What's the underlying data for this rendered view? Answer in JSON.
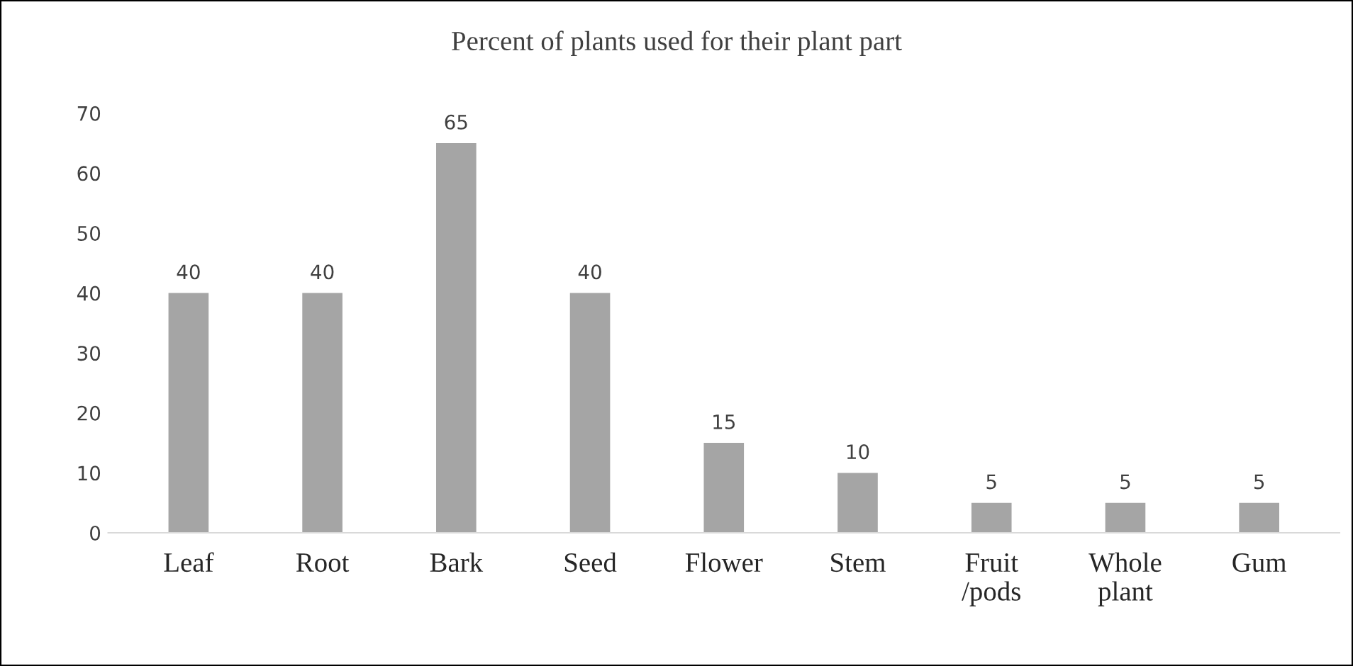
{
  "chart_data": {
    "type": "bar",
    "title": "Percent of plants used for their plant part",
    "categories": [
      "Leaf",
      "Root",
      "Bark",
      "Seed",
      "Flower",
      "Stem",
      "Fruit\n/pods",
      "Whole\nplant",
      "Gum"
    ],
    "values": [
      40,
      40,
      65,
      40,
      15,
      10,
      5,
      5,
      5
    ],
    "color": "#a5a5a5",
    "ylim": [
      0,
      70
    ],
    "yticks": [
      0,
      10,
      20,
      30,
      40,
      50,
      60,
      70
    ],
    "data_labels": true,
    "grid": false,
    "legend": false
  }
}
